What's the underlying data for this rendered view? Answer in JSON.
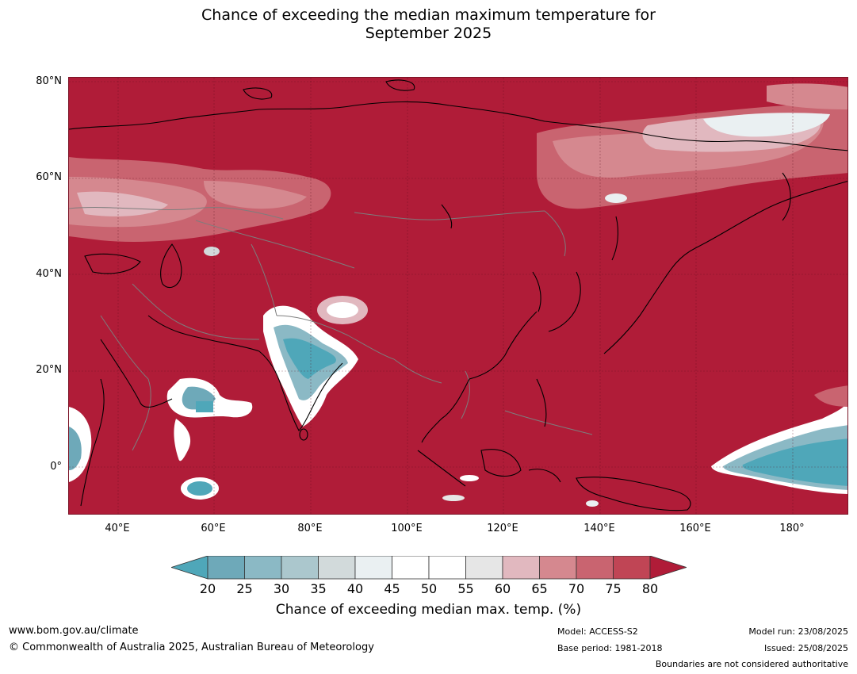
{
  "title_line1": "Chance of exceeding the median maximum temperature for",
  "title_line2": "September 2025",
  "colors": {
    "very_high": "#b01c38",
    "bins": [
      "#4fa7b9",
      "#6ea9b9",
      "#8bb9c5",
      "#abc7cd",
      "#d2dadb",
      "#eaf0f2",
      "#ffffff",
      "#ffffff",
      "#e6e6e6",
      "#e1b8bf",
      "#d5888f",
      "#c96470",
      "#c04555",
      "#b01c38"
    ],
    "land_outline": "#000000",
    "boundary": "#7d7d7d"
  },
  "lat_labels": [
    "80°N",
    "60°N",
    "40°N",
    "20°N",
    "0°"
  ],
  "lon_labels": [
    "40°E",
    "60°E",
    "80°E",
    "100°E",
    "120°E",
    "140°E",
    "160°E",
    "180°"
  ],
  "colorbar": {
    "ticks": [
      "20",
      "25",
      "30",
      "35",
      "40",
      "45",
      "50",
      "55",
      "60",
      "65",
      "70",
      "75",
      "80"
    ],
    "label": "Chance of exceeding median max. temp. (%)"
  },
  "footer": {
    "website": "www.bom.gov.au/climate",
    "copyright": "© Commonwealth of Australia 2025, Australian Bureau of Meteorology",
    "model": "Model: ACCESS-S2",
    "base_period": "Base period: 1981-2018",
    "model_run": "Model run: 23/08/2025",
    "issued": "Issued: 25/08/2025",
    "disclaimer": "Boundaries are not considered authoritative"
  }
}
